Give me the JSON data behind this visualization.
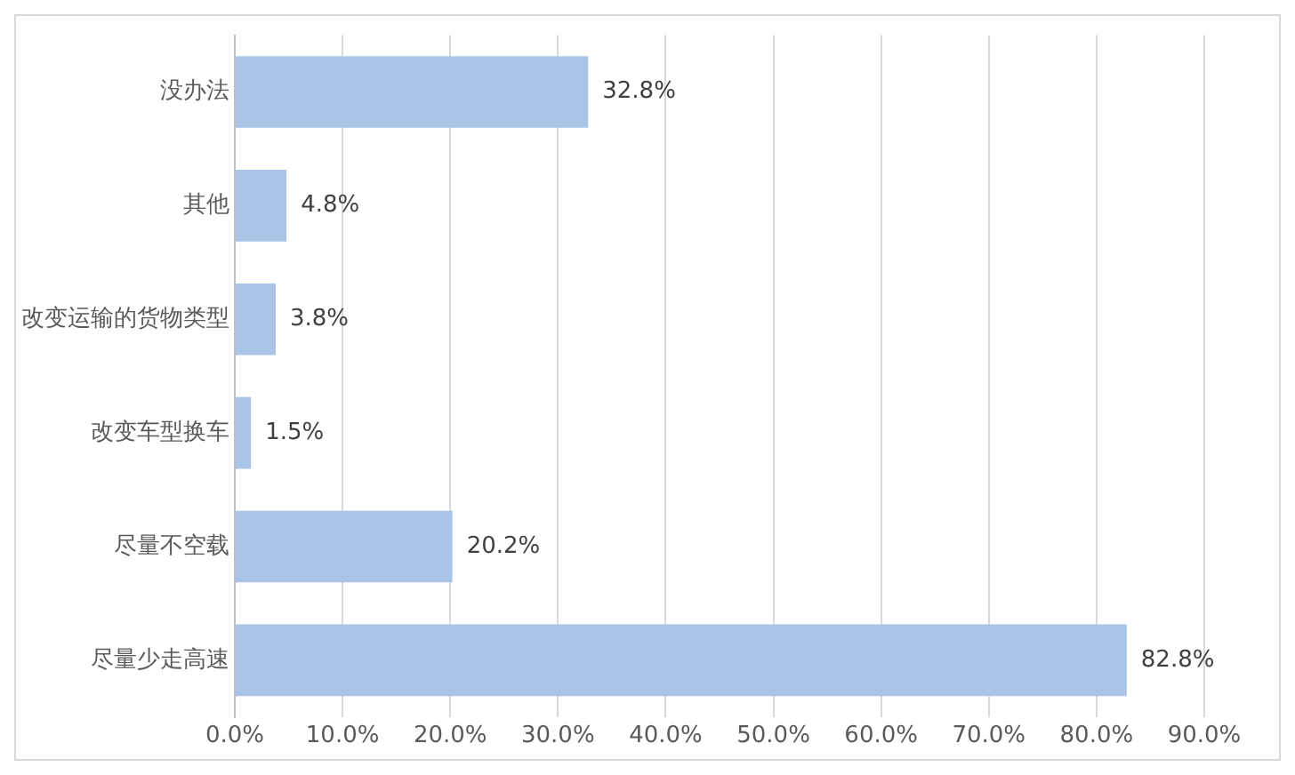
{
  "chart_data": {
    "type": "bar",
    "orientation": "horizontal",
    "categories": [
      "没办法",
      "其他",
      "改变运输的货物类型",
      "改变车型换车",
      "尽量不空载",
      "尽量少走高速"
    ],
    "values": [
      32.8,
      4.8,
      3.8,
      1.5,
      20.2,
      82.8
    ],
    "value_labels": [
      "32.8%",
      "4.8%",
      "3.8%",
      "1.5%",
      "20.2%",
      "82.8%"
    ],
    "color": "#a9c4e6",
    "xlim": [
      0,
      90
    ],
    "xticks": [
      {
        "value": 0,
        "label": "0.0%"
      },
      {
        "value": 10,
        "label": "10.0%"
      },
      {
        "value": 20,
        "label": "20.0%"
      },
      {
        "value": 30,
        "label": "30.0%"
      },
      {
        "value": 40,
        "label": "40.0%"
      },
      {
        "value": 50,
        "label": "50.0%"
      },
      {
        "value": 60,
        "label": "60.0%"
      },
      {
        "value": 70,
        "label": "70.0%"
      },
      {
        "value": 80,
        "label": "80.0%"
      },
      {
        "value": 90,
        "label": "90.0%"
      }
    ],
    "grid": "x",
    "legend": false
  }
}
